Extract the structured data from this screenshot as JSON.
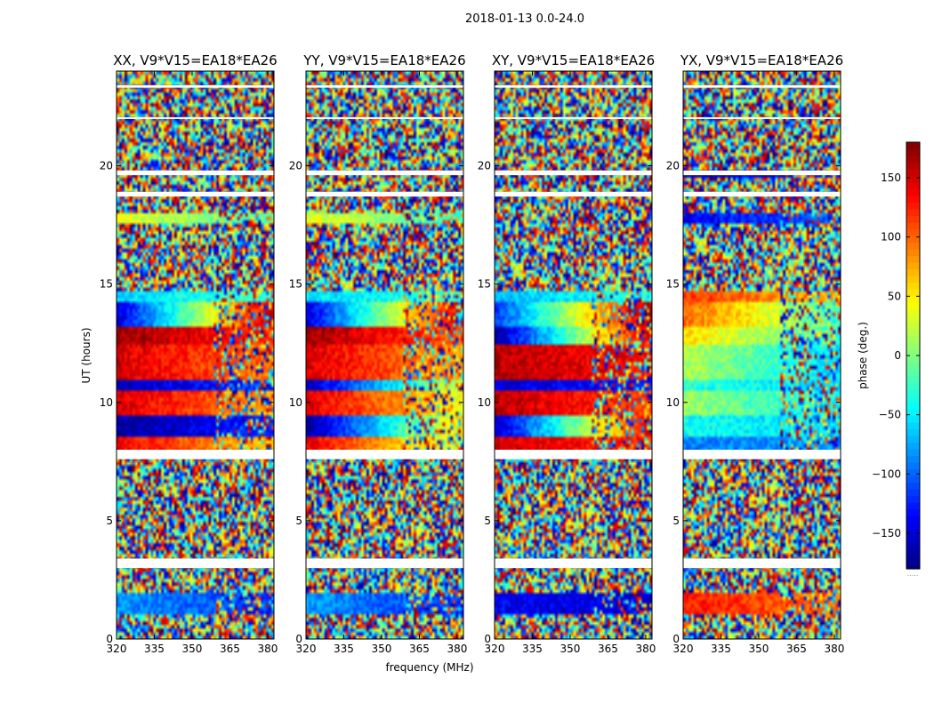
{
  "figure": {
    "suptitle": "2018-01-13 0.0-24.0",
    "xlabel": "frequency (MHz)",
    "ylabel": "UT (hours)",
    "colorbar_label": "phase (deg.)",
    "colorbar_footer": "....."
  },
  "chart_data": [
    {
      "type": "heatmap",
      "title": "XX, V9*V15=EA18*EA26",
      "x_ticks": [
        320,
        335,
        350,
        365,
        380
      ],
      "y_ticks": [
        0,
        5,
        10,
        15,
        20
      ],
      "xlim": [
        320,
        382.5
      ],
      "ylim": [
        0,
        24
      ],
      "color_range": [
        -180,
        180
      ],
      "colormap": "jet",
      "coherent_bands": [
        {
          "ut_from": 8.0,
          "ut_to": 8.5,
          "phase_low_freq": 140,
          "phase_high_freq": 60
        },
        {
          "ut_from": 8.5,
          "ut_to": 9.5,
          "phase_low_freq": -170,
          "phase_high_freq": -120
        },
        {
          "ut_from": 9.5,
          "ut_to": 10.5,
          "phase_low_freq": 150,
          "phase_high_freq": 80
        },
        {
          "ut_from": 10.5,
          "ut_to": 11.0,
          "phase_low_freq": -160,
          "phase_high_freq": -110
        },
        {
          "ut_from": 11.0,
          "ut_to": 12.5,
          "phase_low_freq": 150,
          "phase_high_freq": 90
        },
        {
          "ut_from": 12.5,
          "ut_to": 13.2,
          "phase_low_freq": 170,
          "phase_high_freq": 120
        },
        {
          "ut_from": 13.2,
          "ut_to": 14.2,
          "phase_low_freq": -150,
          "phase_high_freq": 160
        },
        {
          "ut_from": 14.2,
          "ut_to": 14.7,
          "phase_low_freq": -60,
          "phase_high_freq": -20
        },
        {
          "ut_from": 17.6,
          "ut_to": 18.0,
          "phase_low_freq": 40,
          "phase_high_freq": -30
        },
        {
          "ut_from": 1.0,
          "ut_to": 2.0,
          "phase_low_freq": -80,
          "phase_high_freq": -120
        }
      ]
    },
    {
      "type": "heatmap",
      "title": "YY, V9*V15=EA18*EA26",
      "x_ticks": [
        320,
        335,
        350,
        365,
        380
      ],
      "y_ticks": [
        0,
        5,
        10,
        15,
        20
      ],
      "xlim": [
        320,
        382.5
      ],
      "ylim": [
        0,
        24
      ],
      "color_range": [
        -180,
        180
      ],
      "colormap": "jet",
      "coherent_bands": [
        {
          "ut_from": 8.0,
          "ut_to": 8.5,
          "phase_low_freq": 140,
          "phase_high_freq": 20
        },
        {
          "ut_from": 8.5,
          "ut_to": 9.5,
          "phase_low_freq": -170,
          "phase_high_freq": 60
        },
        {
          "ut_from": 9.5,
          "ut_to": 10.5,
          "phase_low_freq": 150,
          "phase_high_freq": 40
        },
        {
          "ut_from": 10.5,
          "ut_to": 11.0,
          "phase_low_freq": -160,
          "phase_high_freq": 30
        },
        {
          "ut_from": 11.0,
          "ut_to": 12.5,
          "phase_low_freq": 150,
          "phase_high_freq": 70
        },
        {
          "ut_from": 12.5,
          "ut_to": 13.2,
          "phase_low_freq": 170,
          "phase_high_freq": 100
        },
        {
          "ut_from": 13.2,
          "ut_to": 14.2,
          "phase_low_freq": -150,
          "phase_high_freq": 160
        },
        {
          "ut_from": 14.2,
          "ut_to": 14.7,
          "phase_low_freq": -60,
          "phase_high_freq": -20
        },
        {
          "ut_from": 17.6,
          "ut_to": 18.0,
          "phase_low_freq": 40,
          "phase_high_freq": -30
        },
        {
          "ut_from": 1.0,
          "ut_to": 2.0,
          "phase_low_freq": -80,
          "phase_high_freq": -120
        }
      ]
    },
    {
      "type": "heatmap",
      "title": "XY, V9*V15=EA18*EA26",
      "x_ticks": [
        320,
        335,
        350,
        365,
        380
      ],
      "y_ticks": [
        0,
        5,
        10,
        15,
        20
      ],
      "xlim": [
        320,
        382.5
      ],
      "ylim": [
        0,
        24
      ],
      "color_range": [
        -180,
        180
      ],
      "colormap": "jet",
      "coherent_bands": [
        {
          "ut_from": 8.0,
          "ut_to": 8.5,
          "phase_low_freq": 150,
          "phase_high_freq": 120
        },
        {
          "ut_from": 8.5,
          "ut_to": 9.5,
          "phase_low_freq": -160,
          "phase_high_freq": 140
        },
        {
          "ut_from": 9.5,
          "ut_to": 10.5,
          "phase_low_freq": 160,
          "phase_high_freq": 110
        },
        {
          "ut_from": 10.5,
          "ut_to": 11.0,
          "phase_low_freq": -150,
          "phase_high_freq": -120
        },
        {
          "ut_from": 11.0,
          "ut_to": 12.5,
          "phase_low_freq": 160,
          "phase_high_freq": 130
        },
        {
          "ut_from": 12.5,
          "ut_to": 13.2,
          "phase_low_freq": -170,
          "phase_high_freq": 150
        },
        {
          "ut_from": 13.2,
          "ut_to": 14.2,
          "phase_low_freq": -120,
          "phase_high_freq": 170
        },
        {
          "ut_from": 14.2,
          "ut_to": 14.7,
          "phase_low_freq": -70,
          "phase_high_freq": -30
        },
        {
          "ut_from": 1.0,
          "ut_to": 2.0,
          "phase_low_freq": -140,
          "phase_high_freq": -150
        }
      ]
    },
    {
      "type": "heatmap",
      "title": "YX, V9*V15=EA18*EA26",
      "x_ticks": [
        320,
        335,
        350,
        365,
        380
      ],
      "y_ticks": [
        0,
        5,
        10,
        15,
        20
      ],
      "xlim": [
        320,
        382.5
      ],
      "ylim": [
        0,
        24
      ],
      "color_range": [
        -180,
        180
      ],
      "colormap": "jet",
      "coherent_bands": [
        {
          "ut_from": 8.0,
          "ut_to": 8.5,
          "phase_low_freq": -90,
          "phase_high_freq": -80
        },
        {
          "ut_from": 8.5,
          "ut_to": 9.5,
          "phase_low_freq": -40,
          "phase_high_freq": -60
        },
        {
          "ut_from": 9.5,
          "ut_to": 10.5,
          "phase_low_freq": 10,
          "phase_high_freq": -50
        },
        {
          "ut_from": 10.5,
          "ut_to": 11.0,
          "phase_low_freq": -30,
          "phase_high_freq": -60
        },
        {
          "ut_from": 11.0,
          "ut_to": 12.5,
          "phase_low_freq": 20,
          "phase_high_freq": -60
        },
        {
          "ut_from": 12.5,
          "ut_to": 13.2,
          "phase_low_freq": 60,
          "phase_high_freq": -30
        },
        {
          "ut_from": 13.2,
          "ut_to": 14.2,
          "phase_low_freq": 100,
          "phase_high_freq": -20
        },
        {
          "ut_from": 14.2,
          "ut_to": 14.7,
          "phase_low_freq": 120,
          "phase_high_freq": 60
        },
        {
          "ut_from": 17.6,
          "ut_to": 18.0,
          "phase_low_freq": -140,
          "phase_high_freq": -100
        },
        {
          "ut_from": 19.5,
          "ut_to": 19.8,
          "phase_low_freq": -160,
          "phase_high_freq": -130
        },
        {
          "ut_from": 1.0,
          "ut_to": 2.0,
          "phase_low_freq": 130,
          "phase_high_freq": 90
        }
      ]
    }
  ],
  "flagged_ut_ranges": [
    [
      3.0,
      3.4
    ],
    [
      7.6,
      8.0
    ],
    [
      18.7,
      18.9
    ],
    [
      19.6,
      19.8
    ],
    [
      22.0,
      22.05
    ],
    [
      23.3,
      23.4
    ]
  ],
  "colorbar": {
    "range": [
      -180,
      180
    ],
    "ticks": [
      -150,
      -100,
      -50,
      0,
      50,
      100,
      150
    ],
    "tick_labels": [
      "−150",
      "−100",
      "−50",
      "0",
      "50",
      "100",
      "150"
    ],
    "colormap": "jet"
  }
}
